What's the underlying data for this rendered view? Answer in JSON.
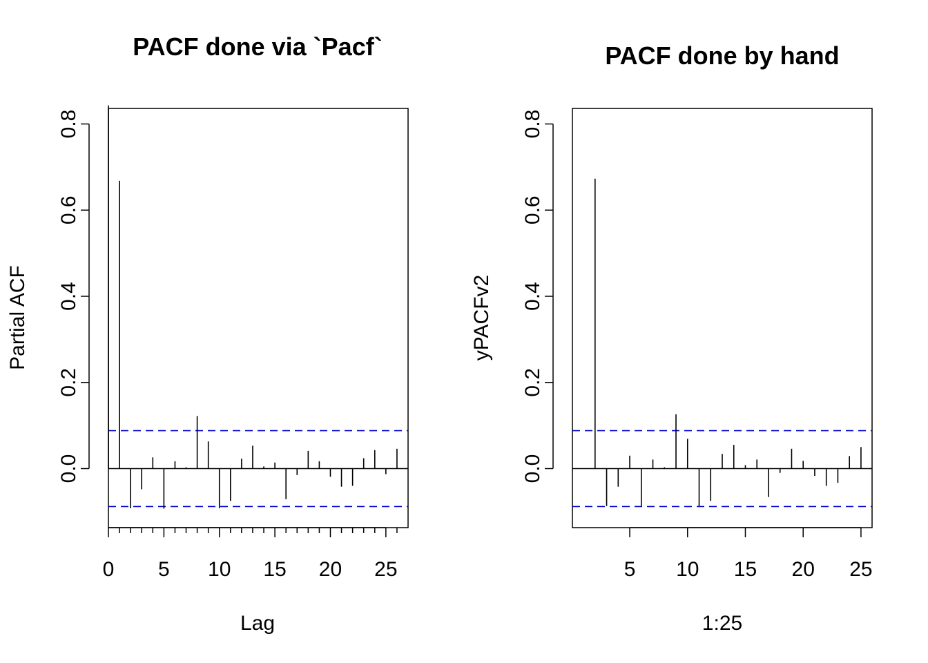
{
  "chart_data": [
    {
      "type": "bar",
      "title": "PACF done via `Pacf`",
      "xlabel": "Lag",
      "ylabel": "Partial ACF",
      "xlim": [
        0,
        27
      ],
      "ylim": [
        -0.135,
        0.835
      ],
      "x_ticks": [
        0,
        5,
        10,
        15,
        20,
        25
      ],
      "x_minor_ticks": [
        1,
        2,
        3,
        4,
        6,
        7,
        8,
        9,
        11,
        12,
        13,
        14,
        16,
        17,
        18,
        19,
        21,
        22,
        23,
        24,
        26
      ],
      "y_ticks": [
        "0.0",
        "0.2",
        "0.4",
        "0.6",
        "0.8"
      ],
      "y_tick_values": [
        0,
        0.2,
        0.4,
        0.6,
        0.8
      ],
      "x": [
        0,
        1,
        2,
        3,
        4,
        5,
        6,
        7,
        8,
        9,
        10,
        11,
        12,
        13,
        14,
        15,
        16,
        17,
        18,
        19,
        20,
        21,
        22,
        23,
        24,
        25,
        26
      ],
      "values": [
        0.843,
        0.668,
        -0.092,
        -0.048,
        0.026,
        -0.093,
        0.017,
        0.003,
        0.122,
        0.063,
        -0.092,
        -0.075,
        0.023,
        0.053,
        0.005,
        0.014,
        -0.071,
        -0.015,
        0.041,
        0.017,
        -0.019,
        -0.042,
        -0.04,
        0.024,
        0.043,
        -0.013,
        0.046
      ],
      "confidence_band": [
        -0.088,
        0.088
      ],
      "confidence_band_color": "#0000cc",
      "grid": false
    },
    {
      "type": "bar",
      "title": "PACF done by hand",
      "xlabel": "1:25",
      "ylabel": "yPACFv2",
      "xlim": [
        0.04,
        25.96
      ],
      "ylim": [
        -0.135,
        0.835
      ],
      "x_ticks": [
        5,
        10,
        15,
        20,
        25
      ],
      "y_ticks": [
        "0.0",
        "0.2",
        "0.4",
        "0.6",
        "0.8"
      ],
      "y_tick_values": [
        0,
        0.2,
        0.4,
        0.6,
        0.8
      ],
      "x": [
        1,
        2,
        3,
        4,
        5,
        6,
        7,
        8,
        9,
        10,
        11,
        12,
        13,
        14,
        15,
        16,
        17,
        18,
        19,
        20,
        21,
        22,
        23,
        24,
        25
      ],
      "values": [
        0.0,
        0.673,
        -0.087,
        -0.042,
        0.03,
        -0.087,
        0.021,
        0.003,
        0.126,
        0.069,
        -0.087,
        -0.075,
        0.034,
        0.055,
        0.008,
        0.021,
        -0.066,
        -0.01,
        0.046,
        0.018,
        -0.017,
        -0.04,
        -0.033,
        0.029,
        0.05
      ],
      "confidence_band": [
        -0.088,
        0.088
      ],
      "confidence_band_color": "#0000cc",
      "grid": false
    }
  ]
}
